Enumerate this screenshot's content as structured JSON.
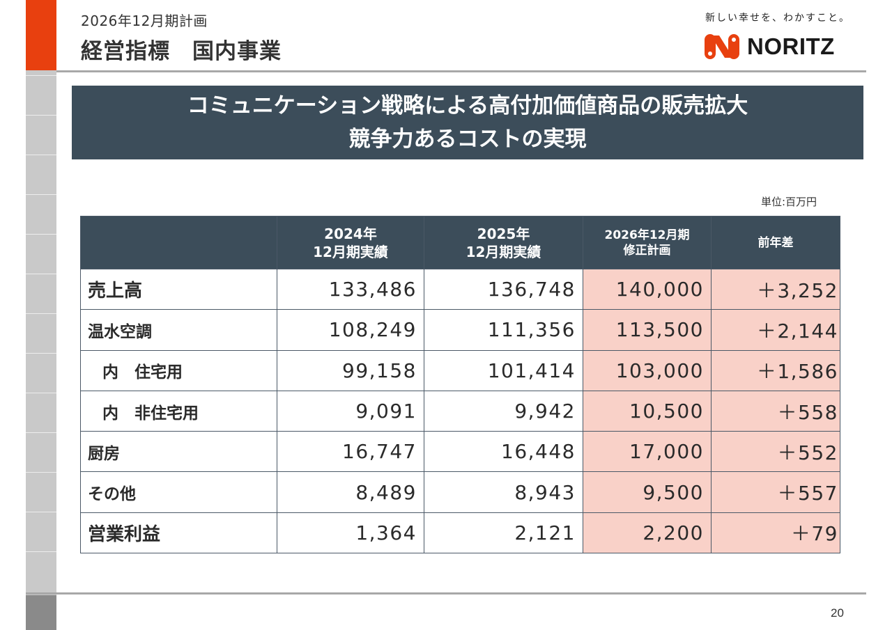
{
  "header": {
    "subtitle": "2026年12月期計画",
    "title": "経営指標　国内事業"
  },
  "brand": {
    "tagline": "新しい幸せを、わかすこと。",
    "logo_text": "NORITZ",
    "logo_color": "#e8400f"
  },
  "banner": {
    "line1": "コミュニケーション戦略による高付加価値商品の販売拡大",
    "line2": "競争力あるコストの実現"
  },
  "unit_label": "単位:百万円",
  "table": {
    "columns": [
      {
        "line1": "",
        "line2": ""
      },
      {
        "line1": "2024年",
        "line2": "12月期実績"
      },
      {
        "line1": "2025年",
        "line2": "12月期実績"
      },
      {
        "line1": "2026年12月期",
        "line2": "修正計画"
      },
      {
        "line1": "前年差",
        "line2": ""
      }
    ],
    "rows": [
      {
        "label": "売上高",
        "values": [
          "133,486",
          "136,748",
          "140,000",
          "＋3,252"
        ]
      },
      {
        "label": "温水空調",
        "values": [
          "108,249",
          "111,356",
          "113,500",
          "＋2,144"
        ]
      },
      {
        "label": "内　住宅用",
        "values": [
          "99,158",
          "101,414",
          "103,000",
          "＋1,586"
        ]
      },
      {
        "label": "内　非住宅用",
        "values": [
          "9,091",
          "9,942",
          "10,500",
          "＋558"
        ]
      },
      {
        "label": "厨房",
        "values": [
          "16,747",
          "16,448",
          "17,000",
          "＋552"
        ]
      },
      {
        "label": "その他",
        "values": [
          "8,489",
          "8,943",
          "9,500",
          "＋557"
        ]
      },
      {
        "label": "営業利益",
        "values": [
          "1,364",
          "2,121",
          "2,200",
          "＋79"
        ]
      }
    ],
    "highlight_color": "#f9d1c8",
    "header_color": "#3c4d5a"
  },
  "page_number": "20"
}
